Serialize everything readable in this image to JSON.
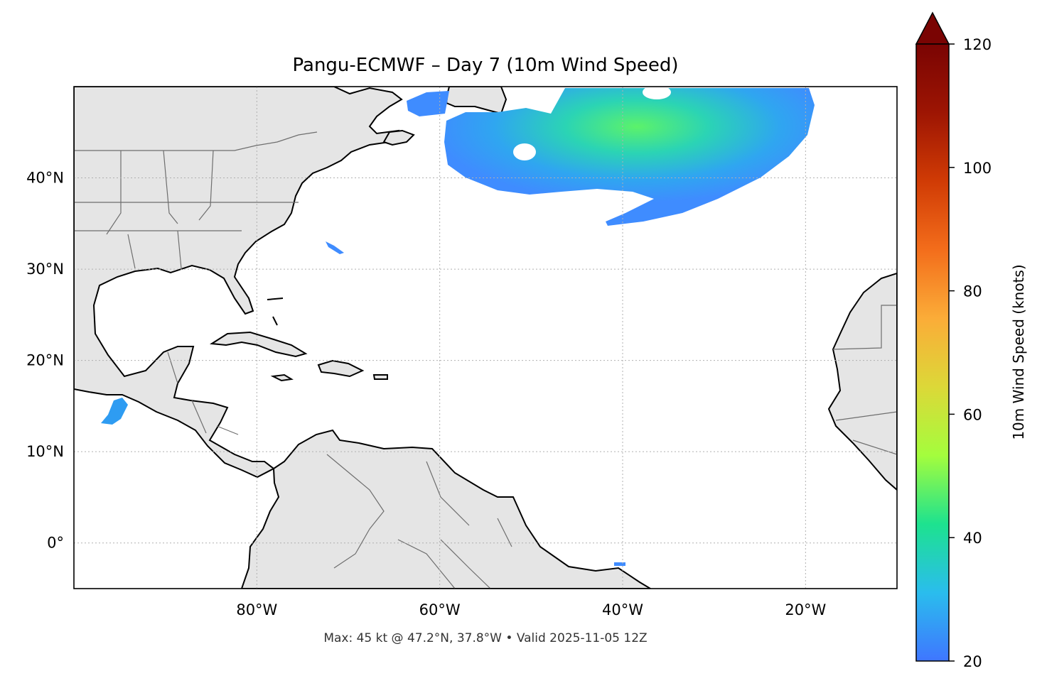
{
  "map": {
    "title": "Pangu-ECMWF – Day 7 (10m Wind Speed)",
    "footer": "Max: 45 kt @ 47.2°N, 37.8°W • Valid 2025-11-05 12Z",
    "extent": {
      "lon_min": -100,
      "lon_max": -10,
      "lat_min": -5,
      "lat_max": 50
    },
    "lat_ticks": [
      {
        "value": 40,
        "label": "40°N"
      },
      {
        "value": 30,
        "label": "30°N"
      },
      {
        "value": 20,
        "label": "20°N"
      },
      {
        "value": 10,
        "label": "10°N"
      },
      {
        "value": 0,
        "label": "0°"
      }
    ],
    "lon_ticks": [
      {
        "value": -80,
        "label": "80°W"
      },
      {
        "value": -60,
        "label": "60°W"
      },
      {
        "value": -40,
        "label": "40°W"
      },
      {
        "value": -20,
        "label": "20°W"
      }
    ],
    "colors": {
      "land": "#e5e5e5",
      "ocean": "#ffffff",
      "coast": "#000000",
      "borders": "#6e6e6e",
      "grid": "#b0b0b0"
    }
  },
  "colorbar": {
    "label": "10m Wind Speed (knots)",
    "min": 20,
    "max": 120,
    "extend": "max",
    "ticks": [
      {
        "value": 20,
        "label": "20"
      },
      {
        "value": 40,
        "label": "40"
      },
      {
        "value": 60,
        "label": "60"
      },
      {
        "value": 80,
        "label": "80"
      },
      {
        "value": 100,
        "label": "100"
      },
      {
        "value": 120,
        "label": "120"
      }
    ],
    "stops": [
      "#3f76ff",
      "#2abded",
      "#1de28f",
      "#a4fd3d",
      "#dcd838",
      "#fbac38",
      "#f36d1b",
      "#d03b05",
      "#9d1503",
      "#7a0403"
    ],
    "extend_color": "#7a0403"
  },
  "wind_features": [
    {
      "name": "north-atlantic-wind-swath",
      "max_kt": 45,
      "max_lat": 47.2,
      "max_lon": -37.8
    },
    {
      "name": "eastern-pacific-wind-patch",
      "peak_kt": 26
    }
  ]
}
